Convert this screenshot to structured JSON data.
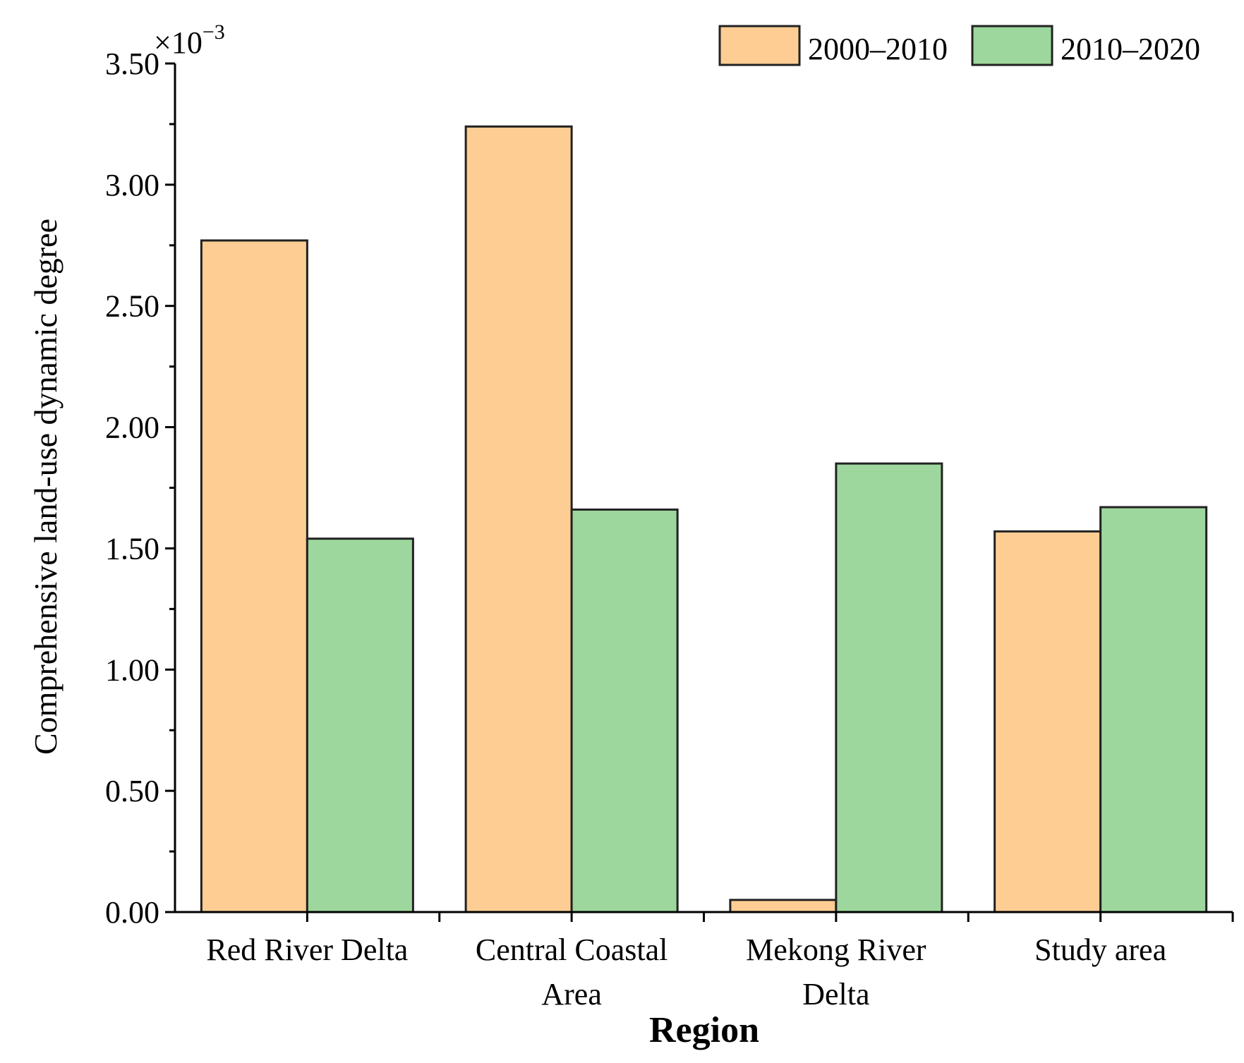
{
  "chart_data": {
    "type": "bar",
    "title": "",
    "xlabel": "Region",
    "ylabel": "Comprehensive land-use dynamic degree",
    "y_multiplier": {
      "base": "×10",
      "exponent": "−3"
    },
    "ylim": [
      0,
      3.5
    ],
    "yticks": [
      "0.00",
      "0.50",
      "1.00",
      "1.50",
      "2.00",
      "2.50",
      "3.00",
      "3.50"
    ],
    "ytick_values": [
      0,
      0.5,
      1.0,
      1.5,
      2.0,
      2.5,
      3.0,
      3.5
    ],
    "categories": [
      [
        "Red River Delta"
      ],
      [
        "Central Coastal",
        "Area"
      ],
      [
        "Mekong River",
        "Delta"
      ],
      [
        "Study area"
      ]
    ],
    "series": [
      {
        "name": "2000–2010",
        "color": "#FDCD93",
        "values": [
          2.77,
          3.24,
          0.05,
          1.57
        ]
      },
      {
        "name": "2010–2020",
        "color": "#9DD79D",
        "values": [
          1.54,
          1.66,
          1.85,
          1.67
        ]
      }
    ],
    "legend_position": "top-right",
    "grid": false
  }
}
